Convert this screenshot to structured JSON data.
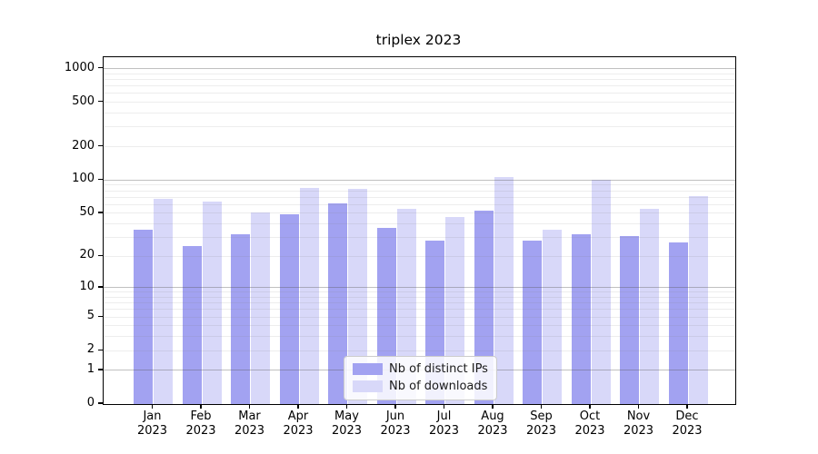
{
  "chart_data": {
    "type": "bar",
    "title": "triplex 2023",
    "categories": [
      "Jan 2023",
      "Feb 2023",
      "Mar 2023",
      "Apr 2023",
      "May 2023",
      "Jun 2023",
      "Jul 2023",
      "Aug 2023",
      "Sep 2023",
      "Oct 2023",
      "Nov 2023",
      "Dec 2023"
    ],
    "series": [
      {
        "name": "Nb of distinct IPs",
        "color": "#a2a2f1",
        "values": [
          35,
          25,
          32,
          49,
          62,
          37,
          28,
          53,
          28,
          32,
          31,
          27
        ]
      },
      {
        "name": "Nb of downloads",
        "color": "#d8d8f9",
        "values": [
          67,
          64,
          51,
          85,
          83,
          55,
          46,
          106,
          35,
          101,
          55,
          71
        ]
      }
    ],
    "xlabel": "",
    "ylabel": "",
    "yscale": "symlog",
    "yticks": [
      0,
      1,
      2,
      5,
      10,
      20,
      50,
      100,
      200,
      500,
      1000
    ],
    "ylim": [
      0,
      1245
    ],
    "grid": true,
    "grid_major_color": "#c1c1c1",
    "grid_minor_color": "#ebebeb",
    "legend_position": "inside lower center",
    "legend": {
      "items": [
        "Nb of distinct IPs",
        "Nb of downloads"
      ]
    }
  }
}
